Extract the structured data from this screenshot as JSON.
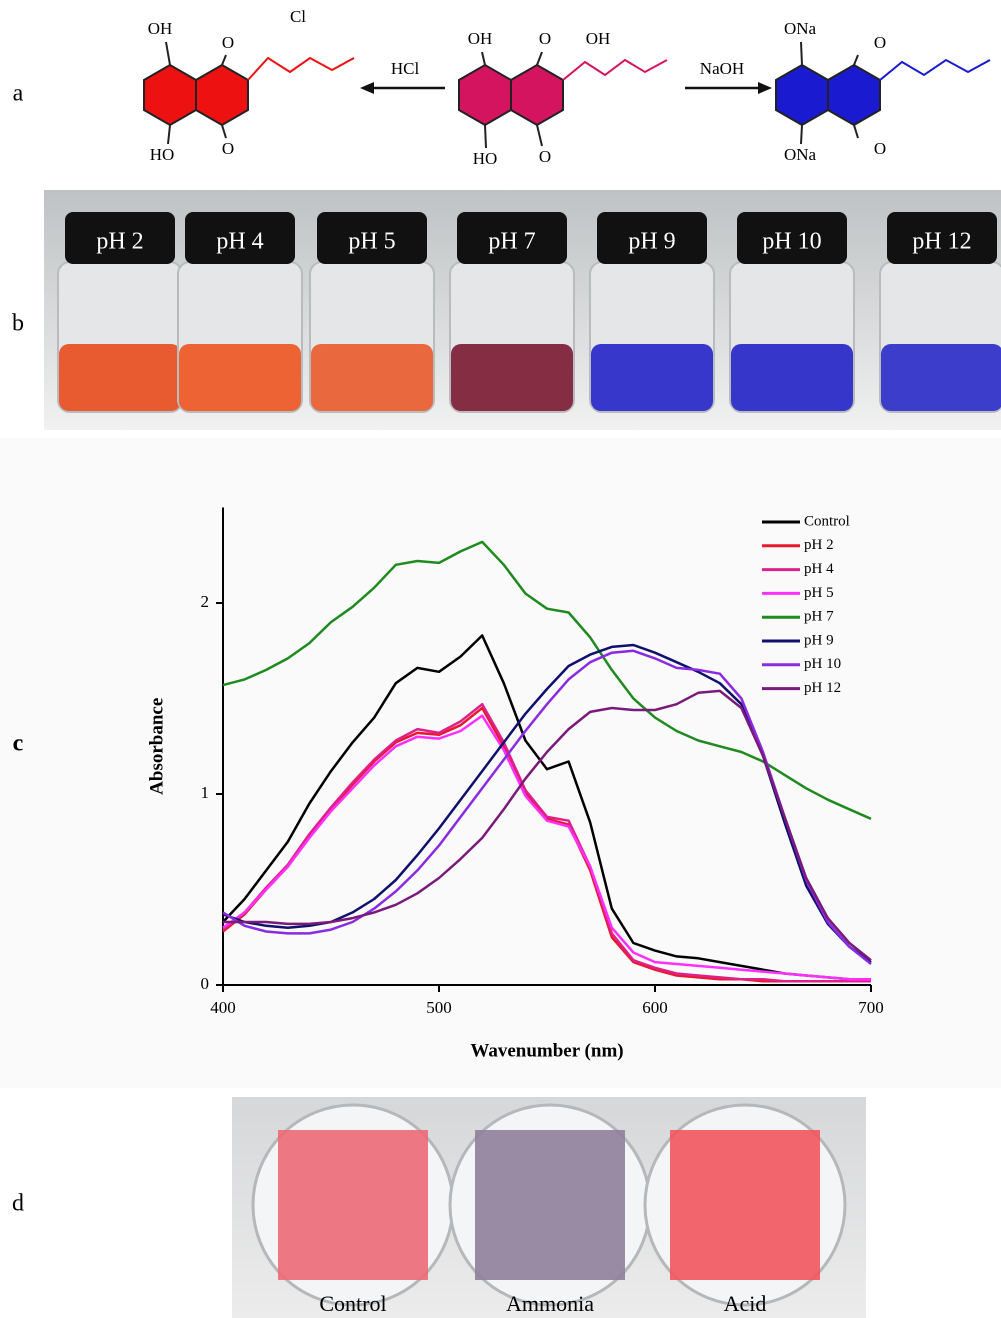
{
  "scheme": {
    "label": "a",
    "molecules": [
      {
        "labels": [
          "OH",
          "O",
          "Cl",
          "HO",
          "O"
        ],
        "color": "#ee1111"
      },
      {
        "labels": [
          "OH",
          "O",
          "OH",
          "HO",
          "O"
        ],
        "color": "#d4145f"
      },
      {
        "labels": [
          "ONa",
          "O",
          "ONa",
          "O"
        ],
        "color": "#1a1ad0"
      }
    ],
    "reagents": [
      "HCl",
      "NaOH"
    ]
  },
  "vials": {
    "label": "b",
    "items": [
      "pH 2",
      "pH 4",
      "pH 5",
      "pH 7",
      "pH 9",
      "pH 10",
      "pH 12"
    ],
    "colors": [
      "#e84a1c",
      "#ee5420",
      "#e95a2a",
      "#7a1830",
      "#2424c8",
      "#2222c6",
      "#2a2ac8"
    ]
  },
  "chart_data": {
    "type": "line",
    "panel_label": "c",
    "x_label": "Wavenumber (nm)",
    "y_label": "Absorbance",
    "x": [
      400,
      410,
      420,
      430,
      440,
      450,
      460,
      470,
      480,
      490,
      500,
      510,
      520,
      530,
      540,
      550,
      560,
      570,
      580,
      590,
      600,
      610,
      620,
      630,
      640,
      650,
      660,
      670,
      680,
      690,
      700
    ],
    "series": [
      {
        "name": "Control",
        "color": "#000000",
        "values": [
          0.33,
          0.45,
          0.6,
          0.75,
          0.95,
          1.12,
          1.27,
          1.4,
          1.58,
          1.66,
          1.64,
          1.72,
          1.83,
          1.58,
          1.28,
          1.13,
          1.17,
          0.85,
          0.4,
          0.22,
          0.18,
          0.15,
          0.14,
          0.12,
          0.1,
          0.08,
          0.06,
          0.05,
          0.04,
          0.03,
          0.03
        ]
      },
      {
        "name": "pH 2",
        "color": "#e8192c",
        "values": [
          0.28,
          0.37,
          0.5,
          0.62,
          0.78,
          0.92,
          1.05,
          1.17,
          1.27,
          1.32,
          1.31,
          1.36,
          1.45,
          1.25,
          1.0,
          0.87,
          0.84,
          0.6,
          0.25,
          0.12,
          0.08,
          0.05,
          0.04,
          0.03,
          0.03,
          0.02,
          0.02,
          0.02,
          0.02,
          0.02,
          0.02
        ]
      },
      {
        "name": "pH 4",
        "color": "#e0208a",
        "values": [
          0.29,
          0.38,
          0.51,
          0.63,
          0.79,
          0.93,
          1.06,
          1.18,
          1.28,
          1.34,
          1.32,
          1.38,
          1.47,
          1.27,
          1.02,
          0.88,
          0.86,
          0.62,
          0.27,
          0.13,
          0.09,
          0.06,
          0.05,
          0.04,
          0.03,
          0.03,
          0.02,
          0.02,
          0.02,
          0.02,
          0.02
        ]
      },
      {
        "name": "pH 5",
        "color": "#ff30ff",
        "values": [
          0.3,
          0.38,
          0.5,
          0.62,
          0.77,
          0.91,
          1.03,
          1.15,
          1.25,
          1.3,
          1.29,
          1.33,
          1.41,
          1.23,
          0.99,
          0.86,
          0.83,
          0.62,
          0.3,
          0.17,
          0.12,
          0.11,
          0.1,
          0.09,
          0.08,
          0.07,
          0.06,
          0.05,
          0.04,
          0.03,
          0.03
        ]
      },
      {
        "name": "pH 7",
        "color": "#1f8a1f",
        "values": [
          1.57,
          1.6,
          1.65,
          1.71,
          1.79,
          1.9,
          1.98,
          2.08,
          2.2,
          2.22,
          2.21,
          2.27,
          2.32,
          2.2,
          2.05,
          1.97,
          1.95,
          1.82,
          1.65,
          1.5,
          1.4,
          1.33,
          1.28,
          1.25,
          1.22,
          1.17,
          1.1,
          1.03,
          0.97,
          0.92,
          0.87
        ]
      },
      {
        "name": "pH 9",
        "color": "#10106e",
        "values": [
          0.37,
          0.33,
          0.31,
          0.3,
          0.31,
          0.33,
          0.38,
          0.45,
          0.55,
          0.68,
          0.82,
          0.97,
          1.12,
          1.27,
          1.42,
          1.55,
          1.67,
          1.73,
          1.77,
          1.78,
          1.74,
          1.69,
          1.64,
          1.58,
          1.47,
          1.2,
          0.85,
          0.52,
          0.32,
          0.2,
          0.12
        ]
      },
      {
        "name": "pH 10",
        "color": "#8a2be2",
        "values": [
          0.38,
          0.31,
          0.28,
          0.27,
          0.27,
          0.29,
          0.33,
          0.4,
          0.49,
          0.6,
          0.73,
          0.88,
          1.03,
          1.18,
          1.33,
          1.47,
          1.6,
          1.69,
          1.74,
          1.75,
          1.71,
          1.66,
          1.65,
          1.63,
          1.5,
          1.22,
          0.88,
          0.55,
          0.33,
          0.2,
          0.11
        ]
      },
      {
        "name": "pH 12",
        "color": "#7a1a7a",
        "values": [
          0.33,
          0.33,
          0.33,
          0.32,
          0.32,
          0.33,
          0.35,
          0.38,
          0.42,
          0.48,
          0.56,
          0.66,
          0.77,
          0.92,
          1.08,
          1.22,
          1.34,
          1.43,
          1.45,
          1.44,
          1.44,
          1.47,
          1.53,
          1.54,
          1.45,
          1.2,
          0.88,
          0.56,
          0.35,
          0.22,
          0.13
        ]
      }
    ],
    "xlim": [
      400,
      700
    ],
    "xticks": [
      400,
      500,
      600,
      700
    ],
    "ylim": [
      0,
      2.5
    ],
    "yticks": [
      0,
      1,
      2
    ],
    "legend": "top-right"
  },
  "films": {
    "label": "d",
    "items": [
      "Control",
      "Ammonia",
      "Acid"
    ],
    "colors": [
      "#ec6a78",
      "#8e7f9a",
      "#f2555d"
    ]
  }
}
